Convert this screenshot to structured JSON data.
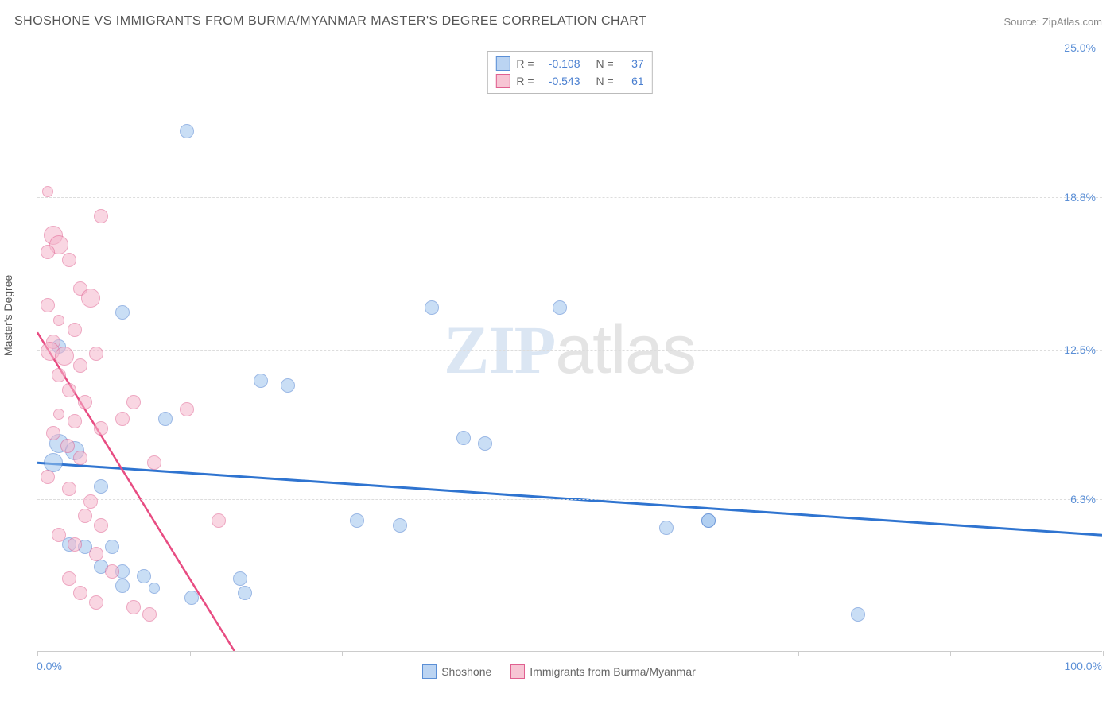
{
  "title": "SHOSHONE VS IMMIGRANTS FROM BURMA/MYANMAR MASTER'S DEGREE CORRELATION CHART",
  "source_label": "Source: ZipAtlas.com",
  "watermark": {
    "part1": "ZIP",
    "part2": "atlas"
  },
  "y_axis_label": "Master's Degree",
  "chart": {
    "type": "scatter",
    "background_color": "#ffffff",
    "grid_color": "#dddddd",
    "axis_color": "#cccccc",
    "xlim": [
      0,
      100
    ],
    "ylim": [
      0,
      25
    ],
    "x_min_label": "0.0%",
    "x_max_label": "100.0%",
    "y_ticks": [
      {
        "value": 6.3,
        "label": "6.3%"
      },
      {
        "value": 12.5,
        "label": "12.5%"
      },
      {
        "value": 18.8,
        "label": "18.8%"
      },
      {
        "value": 25.0,
        "label": "25.0%"
      }
    ],
    "x_tick_positions": [
      0,
      14.3,
      28.6,
      42.9,
      57.1,
      71.4,
      85.7,
      100
    ],
    "marker_sizes": {
      "s": 14,
      "m": 18,
      "l": 24
    },
    "series": [
      {
        "id": "shoshone",
        "label": "Shoshone",
        "color_fill": "#9ec4ee",
        "color_stroke": "#4a7fd0",
        "r_label": "R =",
        "r_value": "-0.108",
        "n_label": "N =",
        "n_value": "37",
        "trend": {
          "x1": 0,
          "y1": 7.8,
          "x2": 100,
          "y2": 4.8,
          "stroke": "#2f74d0",
          "width": 3
        },
        "points": [
          {
            "x": 14,
            "y": 21.5,
            "size": "m"
          },
          {
            "x": 37,
            "y": 14.2,
            "size": "m"
          },
          {
            "x": 49,
            "y": 14.2,
            "size": "m"
          },
          {
            "x": 8,
            "y": 14.0,
            "size": "m"
          },
          {
            "x": 2,
            "y": 12.6,
            "size": "m"
          },
          {
            "x": 21,
            "y": 11.2,
            "size": "m"
          },
          {
            "x": 23.5,
            "y": 11.0,
            "size": "m"
          },
          {
            "x": 12,
            "y": 9.6,
            "size": "m"
          },
          {
            "x": 40,
            "y": 8.8,
            "size": "m"
          },
          {
            "x": 42,
            "y": 8.6,
            "size": "m"
          },
          {
            "x": 2,
            "y": 8.6,
            "size": "l"
          },
          {
            "x": 3.5,
            "y": 8.3,
            "size": "l"
          },
          {
            "x": 1.5,
            "y": 7.8,
            "size": "l"
          },
          {
            "x": 6,
            "y": 6.8,
            "size": "m"
          },
          {
            "x": 30,
            "y": 5.4,
            "size": "m"
          },
          {
            "x": 34,
            "y": 5.2,
            "size": "m"
          },
          {
            "x": 59,
            "y": 5.1,
            "size": "m"
          },
          {
            "x": 63,
            "y": 5.4,
            "size": "m"
          },
          {
            "x": 63,
            "y": 5.4,
            "size": "m"
          },
          {
            "x": 3,
            "y": 4.4,
            "size": "m"
          },
          {
            "x": 4.5,
            "y": 4.3,
            "size": "m"
          },
          {
            "x": 7,
            "y": 4.3,
            "size": "m"
          },
          {
            "x": 6,
            "y": 3.5,
            "size": "m"
          },
          {
            "x": 8,
            "y": 3.3,
            "size": "m"
          },
          {
            "x": 10,
            "y": 3.1,
            "size": "m"
          },
          {
            "x": 8,
            "y": 2.7,
            "size": "m"
          },
          {
            "x": 11,
            "y": 2.6,
            "size": "s"
          },
          {
            "x": 19,
            "y": 3.0,
            "size": "m"
          },
          {
            "x": 19.5,
            "y": 2.4,
            "size": "m"
          },
          {
            "x": 14.5,
            "y": 2.2,
            "size": "m"
          },
          {
            "x": 77,
            "y": 1.5,
            "size": "m"
          }
        ]
      },
      {
        "id": "burma",
        "label": "Immigrants from Burma/Myanmar",
        "color_fill": "#f5b5cb",
        "color_stroke": "#e06090",
        "r_label": "R =",
        "r_value": "-0.543",
        "n_label": "N =",
        "n_value": "61",
        "trend": {
          "x1": 0,
          "y1": 13.2,
          "x2": 18.5,
          "y2": 0,
          "stroke": "#e84c82",
          "width": 2.5
        },
        "points": [
          {
            "x": 1,
            "y": 19.0,
            "size": "s"
          },
          {
            "x": 6,
            "y": 18.0,
            "size": "m"
          },
          {
            "x": 1.5,
            "y": 17.2,
            "size": "l"
          },
          {
            "x": 2,
            "y": 16.8,
            "size": "l"
          },
          {
            "x": 1,
            "y": 16.5,
            "size": "m"
          },
          {
            "x": 3,
            "y": 16.2,
            "size": "m"
          },
          {
            "x": 4,
            "y": 15.0,
            "size": "m"
          },
          {
            "x": 5,
            "y": 14.6,
            "size": "l"
          },
          {
            "x": 1,
            "y": 14.3,
            "size": "m"
          },
          {
            "x": 2,
            "y": 13.7,
            "size": "s"
          },
          {
            "x": 3.5,
            "y": 13.3,
            "size": "m"
          },
          {
            "x": 1.5,
            "y": 12.8,
            "size": "m"
          },
          {
            "x": 1.2,
            "y": 12.4,
            "size": "l"
          },
          {
            "x": 2.5,
            "y": 12.2,
            "size": "l"
          },
          {
            "x": 4,
            "y": 11.8,
            "size": "m"
          },
          {
            "x": 5.5,
            "y": 12.3,
            "size": "m"
          },
          {
            "x": 2,
            "y": 11.4,
            "size": "m"
          },
          {
            "x": 3,
            "y": 10.8,
            "size": "m"
          },
          {
            "x": 4.5,
            "y": 10.3,
            "size": "m"
          },
          {
            "x": 9,
            "y": 10.3,
            "size": "m"
          },
          {
            "x": 14,
            "y": 10.0,
            "size": "m"
          },
          {
            "x": 2,
            "y": 9.8,
            "size": "s"
          },
          {
            "x": 3.5,
            "y": 9.5,
            "size": "m"
          },
          {
            "x": 6,
            "y": 9.2,
            "size": "m"
          },
          {
            "x": 8,
            "y": 9.6,
            "size": "m"
          },
          {
            "x": 1.5,
            "y": 9.0,
            "size": "m"
          },
          {
            "x": 2.8,
            "y": 8.5,
            "size": "m"
          },
          {
            "x": 4,
            "y": 8.0,
            "size": "m"
          },
          {
            "x": 11,
            "y": 7.8,
            "size": "m"
          },
          {
            "x": 1,
            "y": 7.2,
            "size": "m"
          },
          {
            "x": 3,
            "y": 6.7,
            "size": "m"
          },
          {
            "x": 5,
            "y": 6.2,
            "size": "m"
          },
          {
            "x": 4.5,
            "y": 5.6,
            "size": "m"
          },
          {
            "x": 6,
            "y": 5.2,
            "size": "m"
          },
          {
            "x": 17,
            "y": 5.4,
            "size": "m"
          },
          {
            "x": 2,
            "y": 4.8,
            "size": "m"
          },
          {
            "x": 3.5,
            "y": 4.4,
            "size": "m"
          },
          {
            "x": 5.5,
            "y": 4.0,
            "size": "m"
          },
          {
            "x": 7,
            "y": 3.3,
            "size": "m"
          },
          {
            "x": 3,
            "y": 3.0,
            "size": "m"
          },
          {
            "x": 4,
            "y": 2.4,
            "size": "m"
          },
          {
            "x": 5.5,
            "y": 2.0,
            "size": "m"
          },
          {
            "x": 9,
            "y": 1.8,
            "size": "m"
          },
          {
            "x": 10.5,
            "y": 1.5,
            "size": "m"
          }
        ]
      }
    ]
  },
  "colors": {
    "blue_text": "#5b8fd6",
    "title_text": "#555555",
    "source_text": "#888888"
  }
}
